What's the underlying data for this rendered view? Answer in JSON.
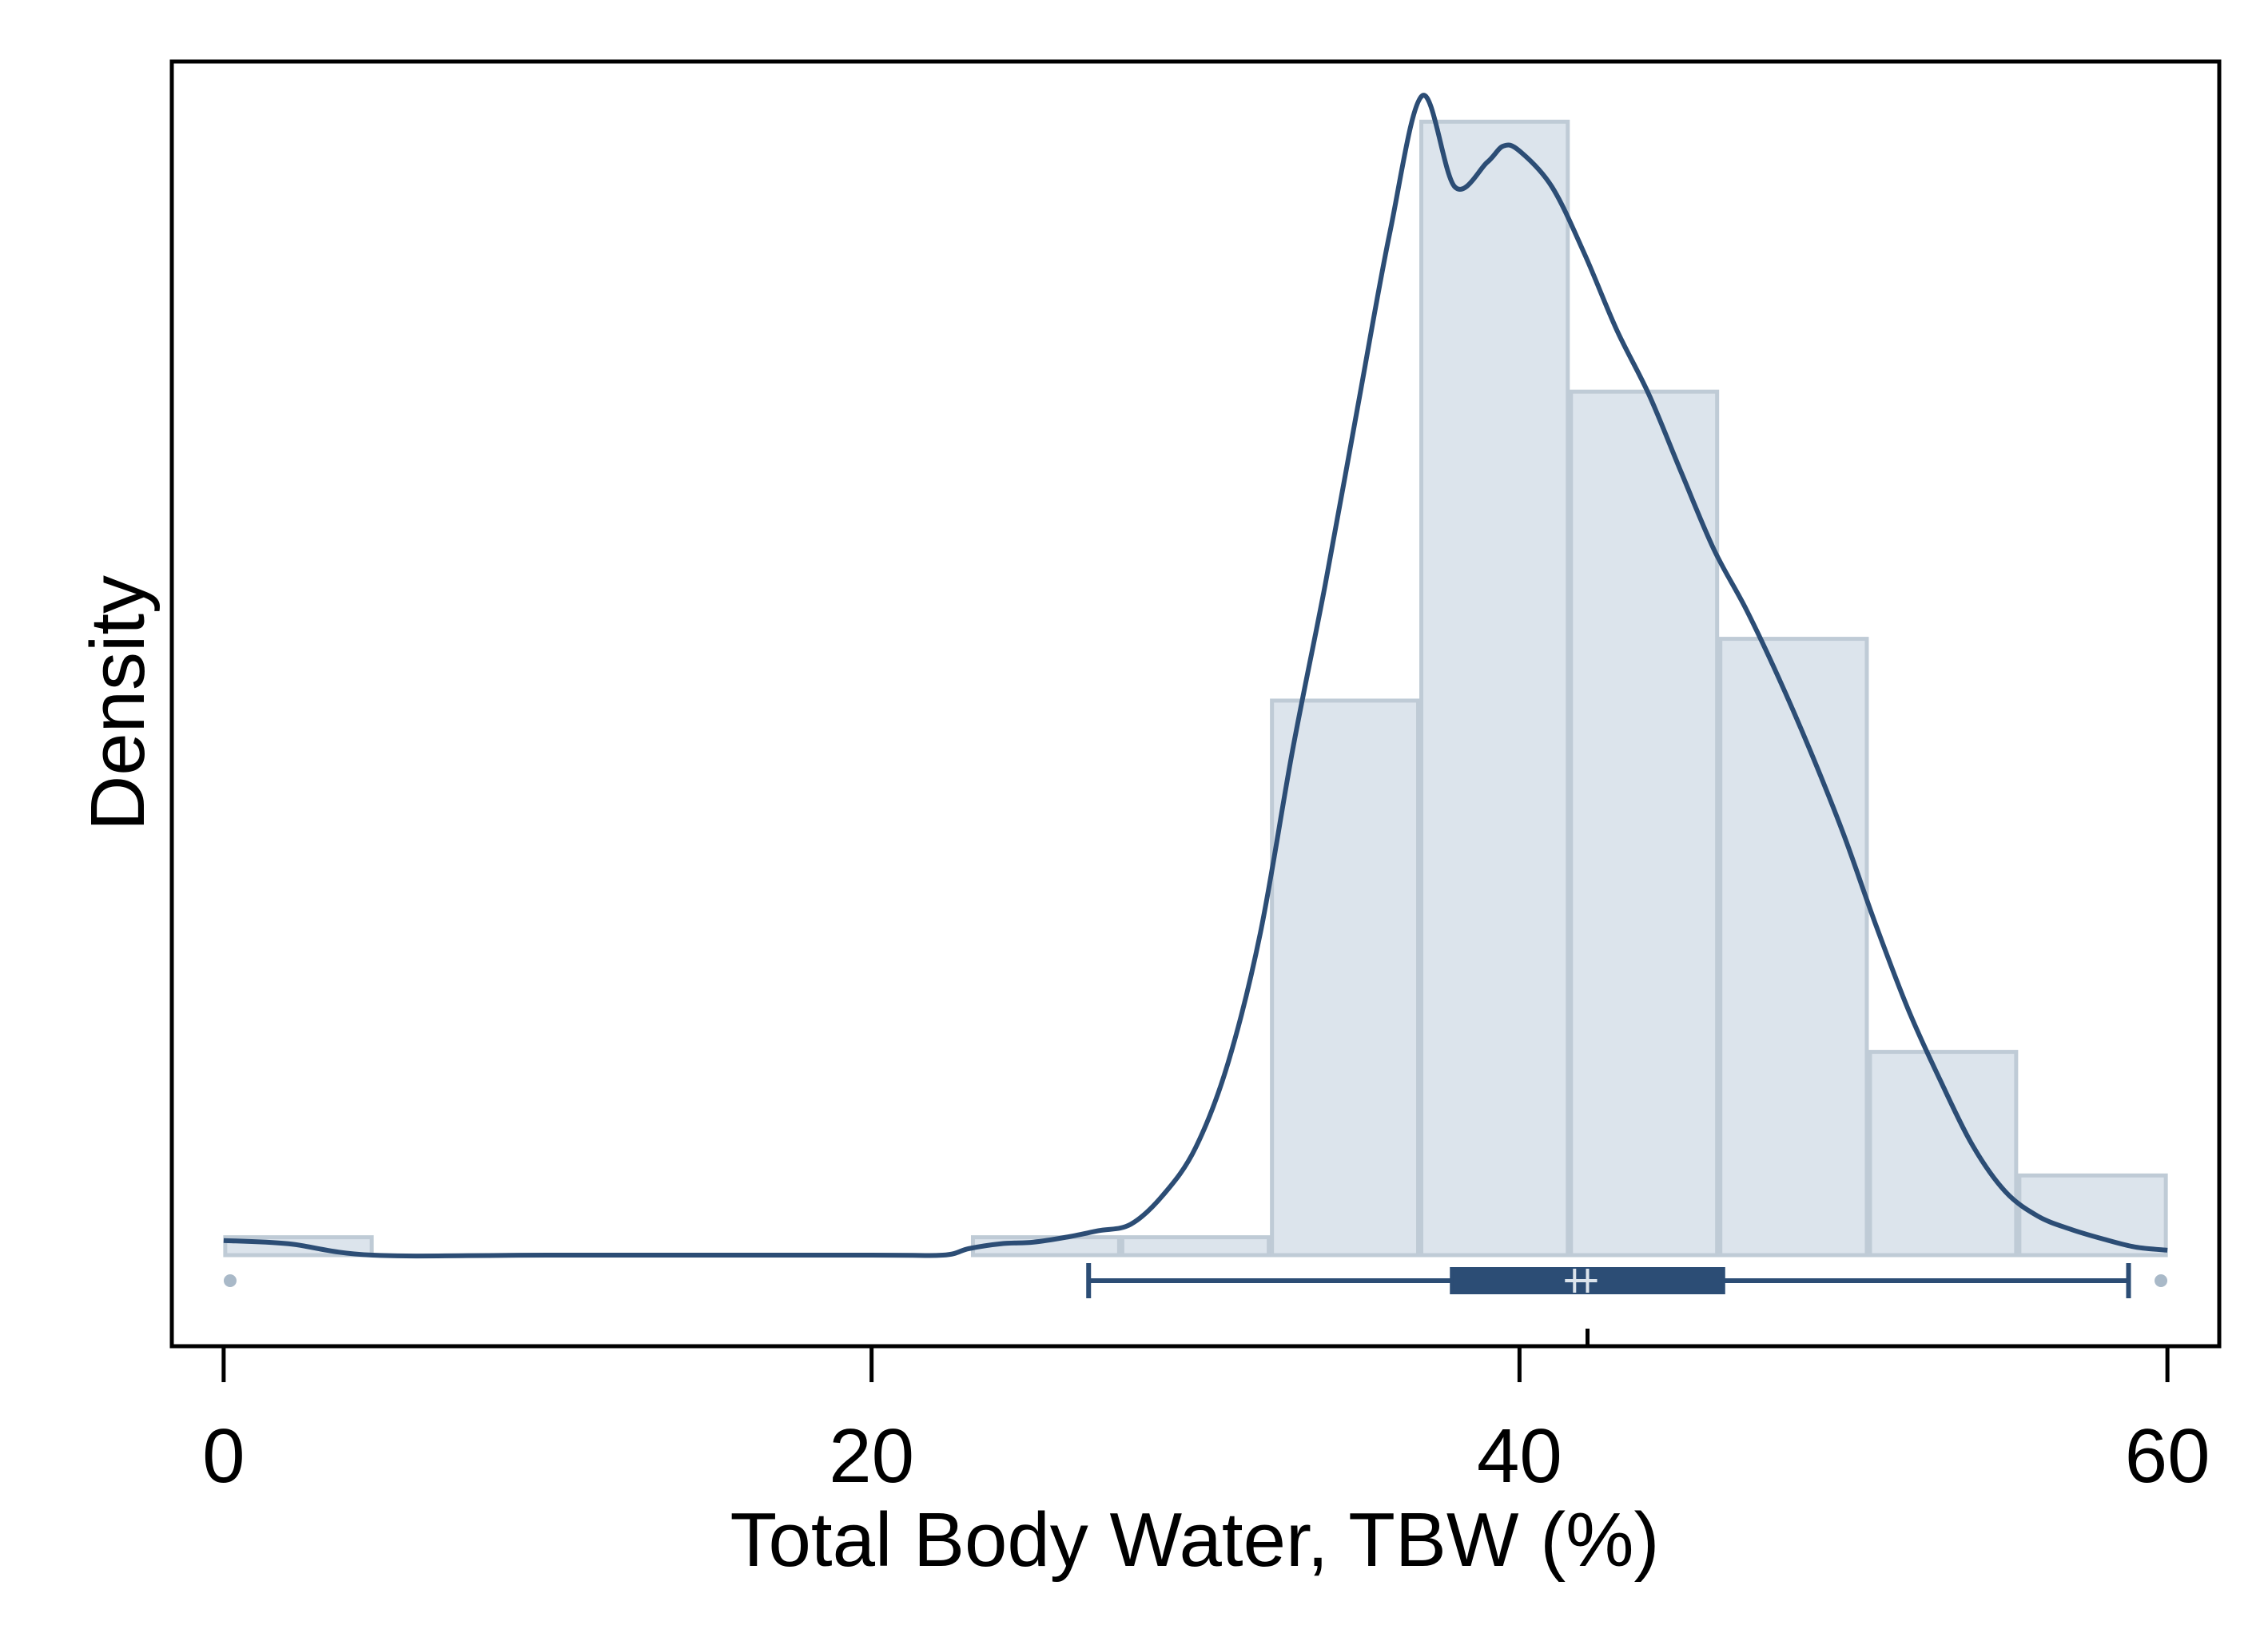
{
  "chart_data": {
    "type": "histogram",
    "title": "",
    "xlabel": "Total Body Water, TBW (%)",
    "ylabel": "Density",
    "xlim": [
      -1.6,
      61.6
    ],
    "ylim": [
      -0.0056,
      0.0734
    ],
    "x_ticks": [
      0,
      20,
      40,
      60
    ],
    "y_ticks_shown": false,
    "grid": false,
    "histogram": {
      "bins": [
        {
          "x0": 0.0,
          "x1": 4.62,
          "density": 0.0011
        },
        {
          "x0": 4.62,
          "x1": 9.23,
          "density": 0.0
        },
        {
          "x0": 9.23,
          "x1": 13.85,
          "density": 0.0
        },
        {
          "x0": 13.85,
          "x1": 18.46,
          "density": 0.0
        },
        {
          "x0": 18.46,
          "x1": 23.08,
          "density": 0.0
        },
        {
          "x0": 23.08,
          "x1": 27.69,
          "density": 0.0011
        },
        {
          "x0": 27.69,
          "x1": 32.31,
          "density": 0.0011
        },
        {
          "x0": 32.31,
          "x1": 36.92,
          "density": 0.0341
        },
        {
          "x0": 36.92,
          "x1": 41.54,
          "density": 0.0697
        },
        {
          "x0": 41.54,
          "x1": 46.15,
          "density": 0.0531
        },
        {
          "x0": 46.15,
          "x1": 50.77,
          "density": 0.0379
        },
        {
          "x0": 50.77,
          "x1": 55.38,
          "density": 0.0125
        },
        {
          "x0": 55.38,
          "x1": 60.0,
          "density": 0.0049
        }
      ],
      "fill": "#dce4ec",
      "edge": "#bfcbd6"
    },
    "kde": {
      "color": "#2c4d75",
      "x": [
        0,
        2,
        4.6,
        10,
        20,
        22.2,
        23,
        24,
        25,
        26,
        27,
        28,
        29,
        30,
        31,
        32,
        33,
        34,
        35,
        36,
        37,
        38,
        39,
        39.5,
        40,
        41,
        42,
        43,
        44,
        45,
        46,
        47,
        48,
        49,
        50,
        51,
        52,
        53,
        54,
        55,
        56,
        57,
        58,
        59,
        60
      ],
      "y": [
        0.0009,
        0.0007,
        0.0,
        0.0,
        0.0,
        0.0,
        0.0004,
        0.0007,
        0.0008,
        0.0011,
        0.0015,
        0.0019,
        0.0037,
        0.0066,
        0.0118,
        0.0198,
        0.0311,
        0.0412,
        0.0521,
        0.0629,
        0.0713,
        0.0657,
        0.0672,
        0.0682,
        0.0679,
        0.0657,
        0.0616,
        0.0569,
        0.0529,
        0.0481,
        0.0434,
        0.0397,
        0.0355,
        0.0309,
        0.0259,
        0.0203,
        0.0151,
        0.0107,
        0.0067,
        0.0039,
        0.0024,
        0.0016,
        0.001,
        0.0005,
        0.0003
      ]
    },
    "boxplot": {
      "color": "#2c4d75",
      "whisker_low": 26.7,
      "q1": 37.9,
      "median": 41.7,
      "mean": 42.1,
      "q3": 46.3,
      "whisker_high": 58.8,
      "outliers": [
        0.2,
        59.8
      ],
      "outlier_color": "#a9b9c8"
    },
    "mean_marker": 42.1
  }
}
